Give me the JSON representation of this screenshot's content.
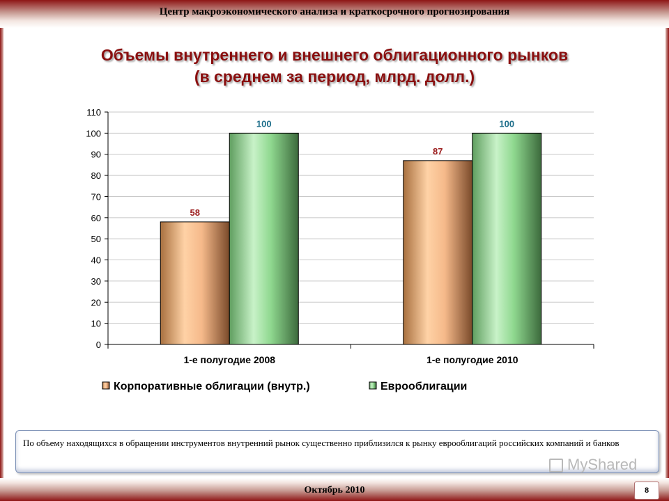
{
  "header": {
    "org": "Центр макроэкономического анализа и краткосрочного прогнозирования"
  },
  "slide": {
    "title_line1": "Объемы внутреннего и внешнего облигационного рынков",
    "title_line2": "(в среднем за период, млрд. долл.)"
  },
  "chart_data": {
    "type": "bar",
    "categories": [
      "1-е полугодие 2008",
      "1-е полугодие 2010"
    ],
    "series": [
      {
        "name": "Корпоративные облигации (внутр.)",
        "values": [
          58,
          87
        ],
        "color": "#f5b98a",
        "label_color": "#9b1c1c"
      },
      {
        "name": "Еврооблигации",
        "values": [
          100,
          100
        ],
        "color": "#8fd88f",
        "label_color": "#1f6f8b"
      }
    ],
    "ylim": [
      0,
      110
    ],
    "yticks": [
      0,
      10,
      20,
      30,
      40,
      50,
      60,
      70,
      80,
      90,
      100,
      110
    ],
    "grid": true,
    "legend_position": "bottom"
  },
  "note": {
    "text": "По объему находящихся в обращении инструментов внутренний рынок существенно приблизился к рынку еврооблигаций российских компаний и банков"
  },
  "footer": {
    "date": "Октябрь 2010",
    "page": "8"
  },
  "watermark": {
    "text": "MyShared",
    "icon": "presentation-icon"
  }
}
